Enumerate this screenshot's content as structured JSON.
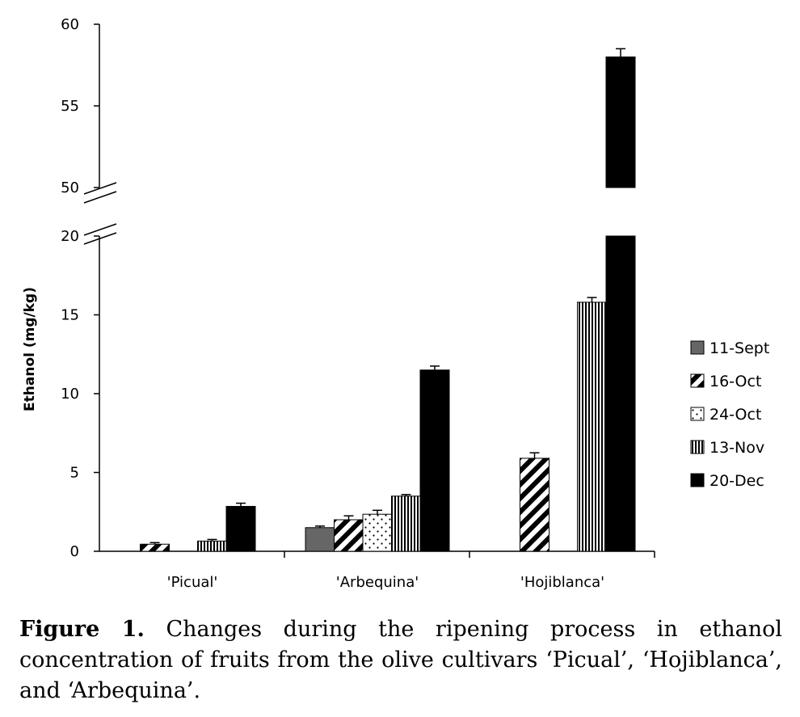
{
  "chart_data": {
    "type": "bar",
    "ylabel": "Ethanol (mg/kg)",
    "categories": [
      "'Picual'",
      "'Arbequina'",
      "'Hojiblanca'"
    ],
    "y_ticks_lower": [
      "0",
      "5",
      "10",
      "15",
      "20"
    ],
    "y_ticks_upper": [
      "50",
      "55",
      "60"
    ],
    "ylim_lower": [
      0,
      20
    ],
    "ylim_upper": [
      50,
      60
    ],
    "axis_break": "between 20 and 50",
    "grid": false,
    "legend_position": "right",
    "series": [
      {
        "name": "11-Sept",
        "values": [
          0,
          1.5,
          0
        ],
        "errors": [
          0,
          0.1,
          0
        ],
        "pattern": "solid-gray",
        "color": "#666666"
      },
      {
        "name": "16-Oct",
        "values": [
          0.45,
          2.0,
          5.9
        ],
        "errors": [
          0.1,
          0.25,
          0.35
        ],
        "pattern": "diagonal-stripes",
        "color": "#000000"
      },
      {
        "name": "24-Oct",
        "values": [
          0,
          2.35,
          0
        ],
        "errors": [
          0,
          0.25,
          0
        ],
        "pattern": "dots",
        "color": "#000000"
      },
      {
        "name": "13-Nov",
        "values": [
          0.65,
          3.5,
          15.8
        ],
        "errors": [
          0.1,
          0.1,
          0.3
        ],
        "pattern": "vertical-stripes",
        "color": "#000000"
      },
      {
        "name": "20-Dec",
        "values": [
          2.85,
          11.5,
          58.0
        ],
        "errors": [
          0.2,
          0.25,
          0.5
        ],
        "pattern": "solid-black",
        "color": "#000000"
      }
    ]
  },
  "caption": {
    "figure_label": "Figure 1.",
    "text": " Changes during the ripening process in ethanol concentration of fruits from the olive cultivars ‘Picual’, ‘Hojiblanca’, and ‘Arbequina’."
  }
}
